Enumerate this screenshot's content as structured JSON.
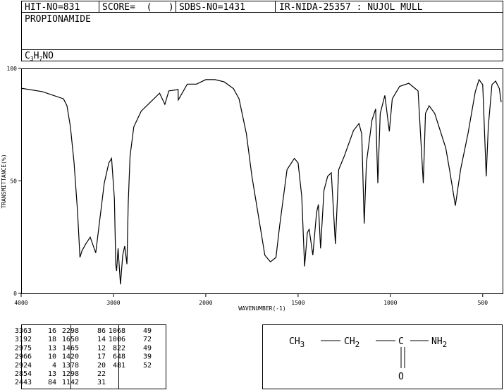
{
  "header": {
    "hit": "HIT-NO=831",
    "score": "SCORE=  (   )",
    "sdbs": "SDBS-NO=1431",
    "method": "IR-NIDA-25357 : NUJOL MULL",
    "name": "PROPIONAMIDE",
    "formula": [
      "C",
      "3",
      "H",
      "7",
      "NO"
    ]
  },
  "chart_data": {
    "type": "line",
    "color": "#000000",
    "xlabel": "WAVENUMBER(-1)",
    "ylabel": "TRANSMITTANCE(%)",
    "xlim": [
      4000,
      400
    ],
    "x_scale_change": {
      "at": 2000,
      "factor": 2
    },
    "ylim": [
      0,
      100
    ],
    "xticks": [
      4000,
      3000,
      2000,
      1500,
      1000,
      500
    ],
    "yticks": [
      0,
      50,
      100
    ],
    "x": [
      4000,
      3771,
      3542,
      3504,
      3466,
      3427,
      3389,
      3363,
      3340,
      3300,
      3252,
      3192,
      3100,
      3050,
      3020,
      2990,
      2975,
      2966,
      2950,
      2924,
      2900,
      2878,
      2854,
      2840,
      2820,
      2780,
      2700,
      2600,
      2500,
      2443,
      2400,
      2300,
      2298,
      2200,
      2100,
      2000,
      1950,
      1900,
      1850,
      1820,
      1780,
      1750,
      1700,
      1680,
      1650,
      1620,
      1600,
      1560,
      1520,
      1500,
      1480,
      1465,
      1450,
      1440,
      1420,
      1400,
      1390,
      1378,
      1360,
      1340,
      1320,
      1298,
      1280,
      1250,
      1200,
      1170,
      1155,
      1142,
      1130,
      1100,
      1080,
      1068,
      1055,
      1030,
      1006,
      990,
      950,
      900,
      850,
      822,
      810,
      790,
      760,
      700,
      680,
      648,
      620,
      580,
      540,
      520,
      500,
      481,
      470,
      450,
      430,
      410,
      400
    ],
    "values": [
      91.2,
      89.7,
      86.5,
      83.4,
      74,
      58.3,
      36.4,
      16,
      19,
      22,
      25,
      18,
      49,
      58,
      60,
      42,
      13,
      10,
      20,
      4,
      17,
      21,
      13,
      40,
      61,
      74,
      81,
      85,
      89,
      84,
      90,
      90.6,
      86,
      93,
      93,
      95,
      95,
      94,
      91,
      86.5,
      71,
      52,
      27,
      17,
      14,
      16,
      30,
      55,
      60,
      58,
      43,
      12,
      27,
      28.5,
      17,
      36,
      39.5,
      20,
      45.8,
      52,
      53.6,
      22,
      55,
      61,
      72.4,
      75.5,
      70.8,
      31,
      58,
      77,
      82,
      49,
      80,
      88,
      72,
      86.5,
      92,
      93.4,
      90,
      49,
      80,
      83.4,
      80,
      64.6,
      55,
      39,
      55,
      71,
      89.7,
      95,
      92.8,
      52,
      74,
      92.8,
      94.4,
      91,
      85
    ]
  },
  "peak_table": [
    [
      [
        3363,
        16
      ],
      [
        3192,
        18
      ],
      [
        2975,
        13
      ],
      [
        2966,
        10
      ],
      [
        2924,
        4
      ],
      [
        2854,
        13
      ],
      [
        2443,
        84
      ]
    ],
    [
      [
        2298,
        86
      ],
      [
        1650,
        14
      ],
      [
        1465,
        12
      ],
      [
        1420,
        17
      ],
      [
        1378,
        20
      ],
      [
        1298,
        22
      ],
      [
        1142,
        31
      ]
    ],
    [
      [
        1068,
        49
      ],
      [
        1006,
        72
      ],
      [
        822,
        49
      ],
      [
        648,
        39
      ],
      [
        481,
        52
      ]
    ]
  ],
  "structure": [
    "CH",
    "3",
    "CH",
    "2",
    "C",
    "NH",
    "2",
    "O"
  ]
}
